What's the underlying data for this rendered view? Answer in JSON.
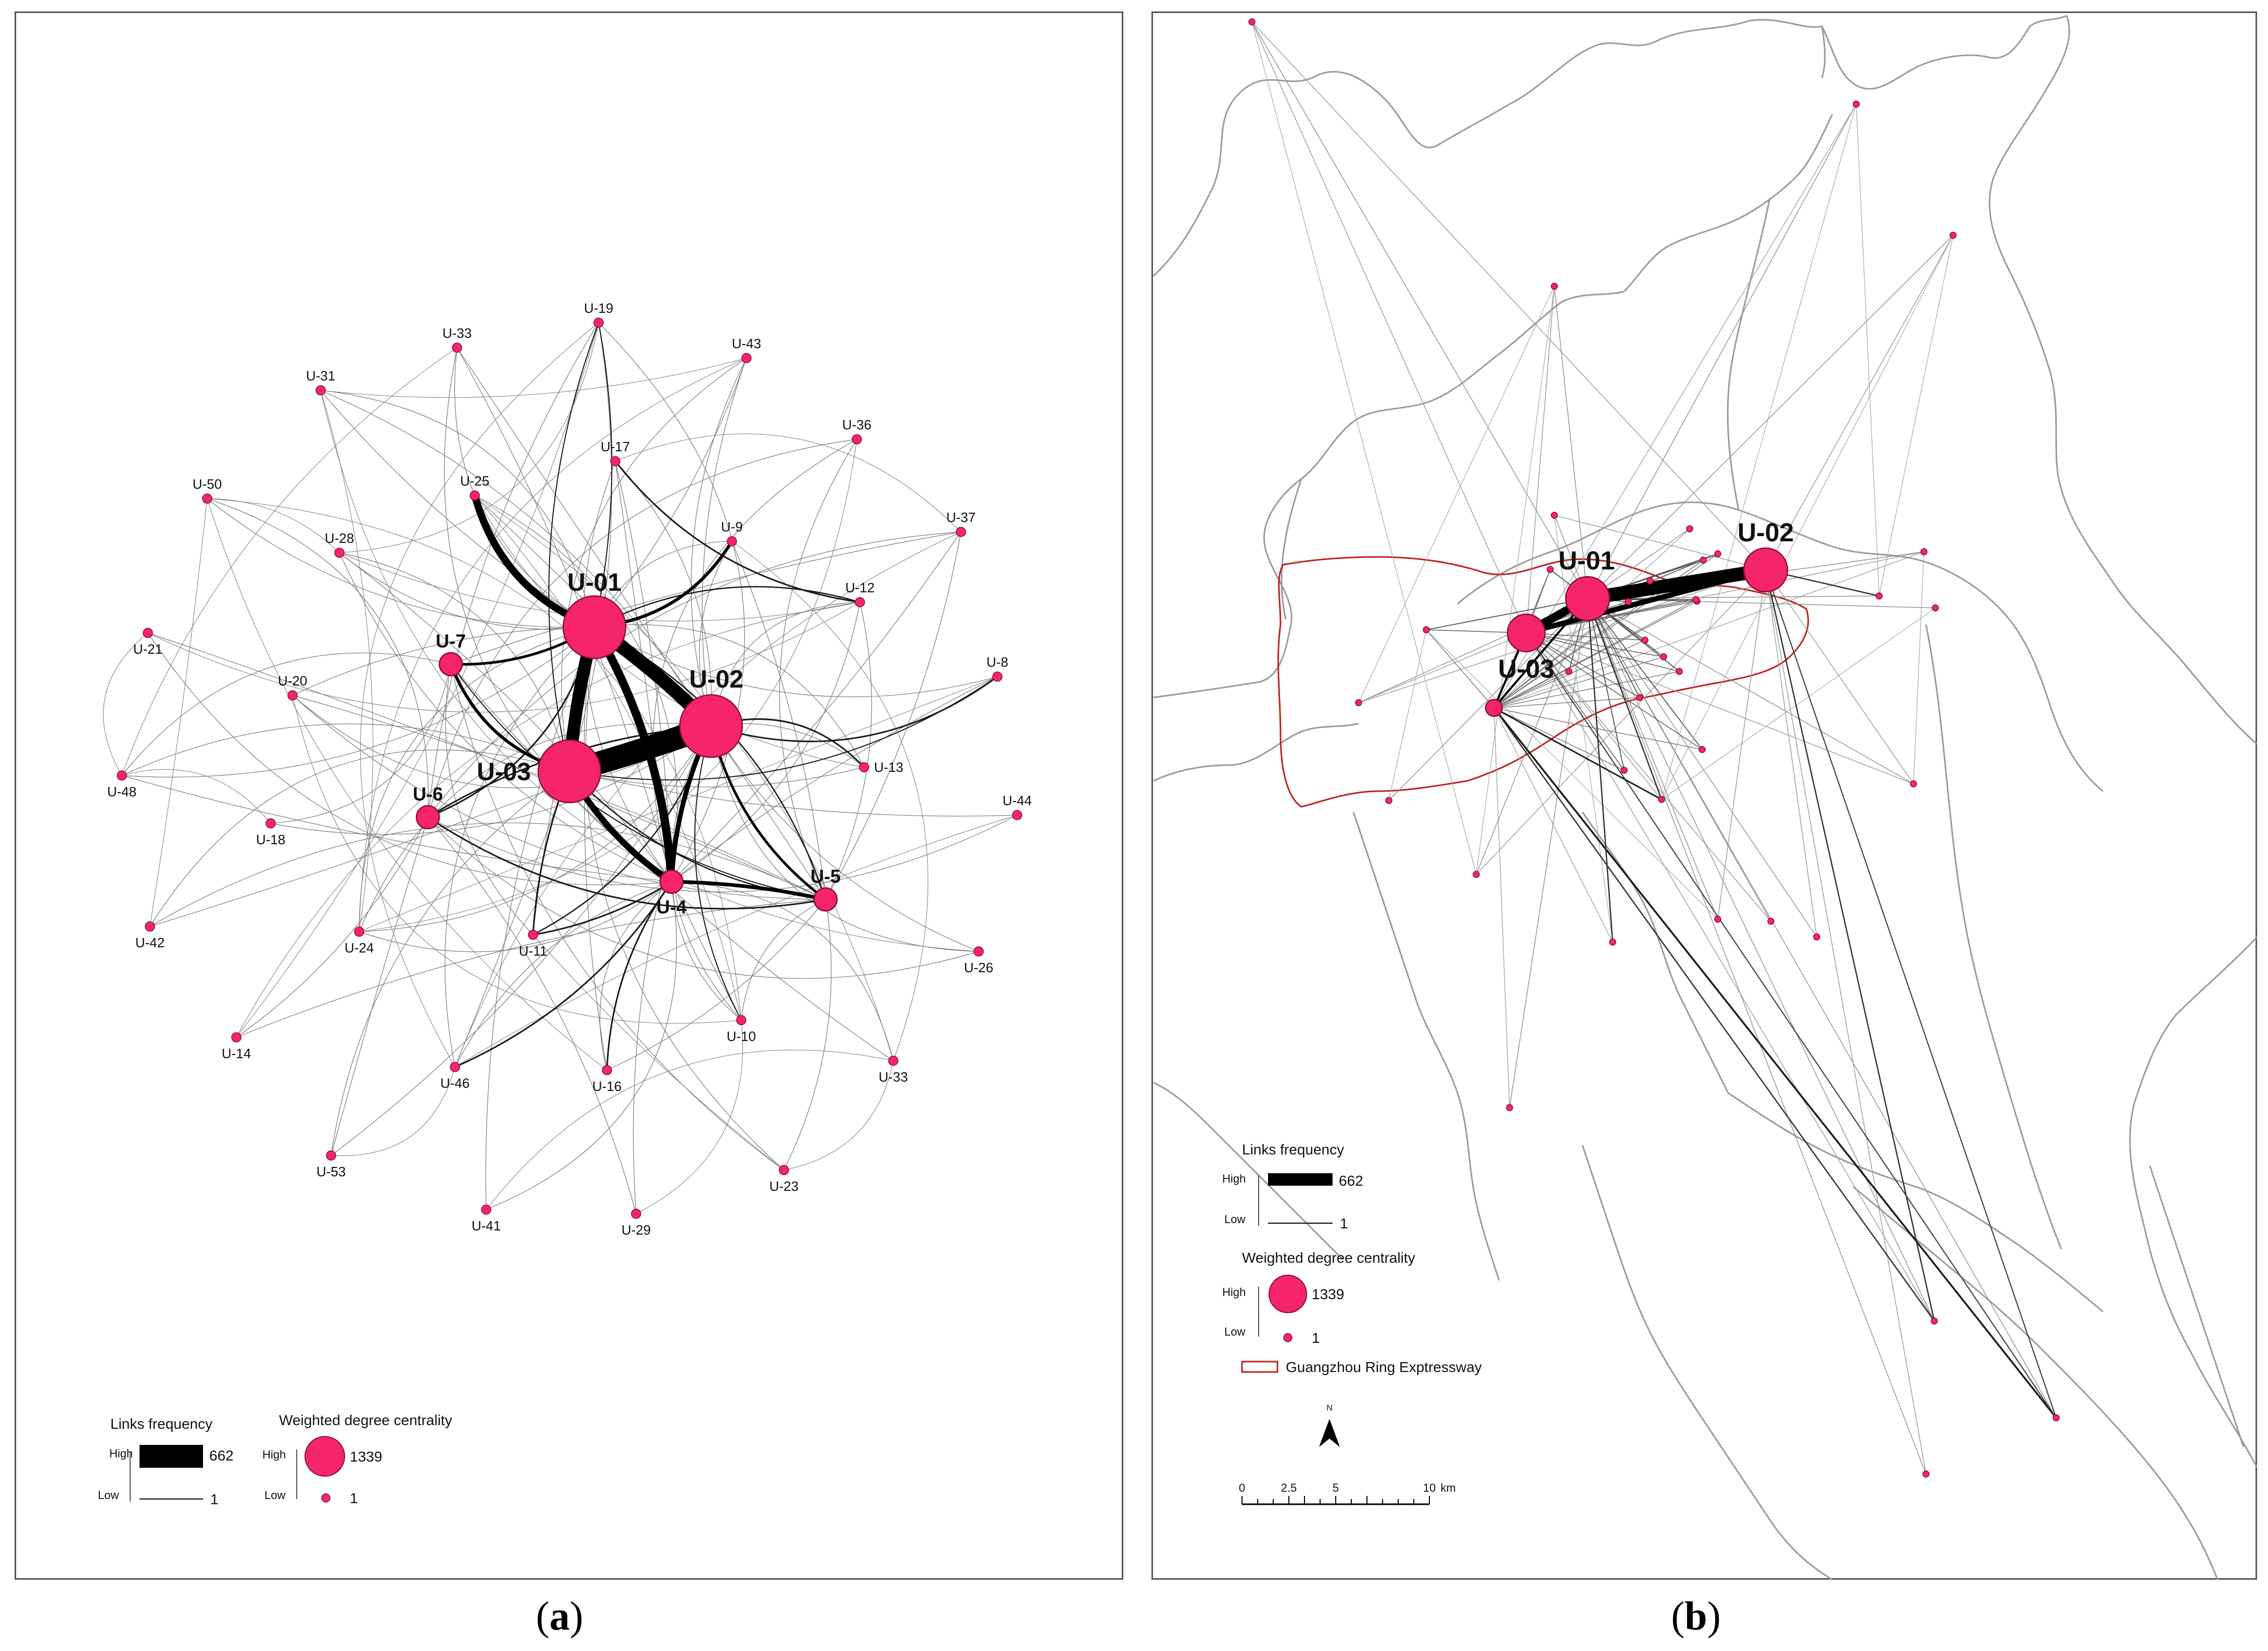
{
  "panels": [
    {
      "caption_letter": "a",
      "legend": {
        "links_title": "Links frequency",
        "links_high": "High",
        "links_low": "Low",
        "links_max": "662",
        "links_min": "1",
        "centrality_title": "Weighted degree centrality",
        "centrality_high": "High",
        "centrality_low": "Low",
        "centrality_max": "1339",
        "centrality_min": "1"
      },
      "nodes": [
        {
          "id": "U-01",
          "label": "U-01",
          "size": "big"
        },
        {
          "id": "U-02",
          "label": "U-02",
          "size": "big"
        },
        {
          "id": "U-03",
          "label": "U-03",
          "size": "big"
        },
        {
          "id": "U-4",
          "label": "U-4",
          "size": "mid"
        },
        {
          "id": "U-5",
          "label": "U-5",
          "size": "mid"
        },
        {
          "id": "U-6",
          "label": "U-6",
          "size": "mid"
        },
        {
          "id": "U-7",
          "label": "U-7",
          "size": "mid"
        },
        {
          "id": "U-8",
          "label": "U-8",
          "size": "small"
        },
        {
          "id": "U-9",
          "label": "U-9",
          "size": "small"
        },
        {
          "id": "U-10",
          "label": "U-10",
          "size": "small"
        },
        {
          "id": "U-11",
          "label": "U-11",
          "size": "small"
        },
        {
          "id": "U-12",
          "label": "U-12",
          "size": "small"
        },
        {
          "id": "U-13",
          "label": "U-13",
          "size": "small"
        },
        {
          "id": "U-14",
          "label": "U-14",
          "size": "small"
        },
        {
          "id": "U-16",
          "label": "U-16",
          "size": "small"
        },
        {
          "id": "U-17",
          "label": "U-17",
          "size": "small"
        },
        {
          "id": "U-18",
          "label": "U-18",
          "size": "small"
        },
        {
          "id": "U-19",
          "label": "U-19",
          "size": "small"
        },
        {
          "id": "U-20",
          "label": "U-20",
          "size": "small"
        },
        {
          "id": "U-21",
          "label": "U-21",
          "size": "small"
        },
        {
          "id": "U-23",
          "label": "U-23",
          "size": "small"
        },
        {
          "id": "U-24",
          "label": "U-24",
          "size": "small"
        },
        {
          "id": "U-25",
          "label": "U-25",
          "size": "small"
        },
        {
          "id": "U-26",
          "label": "U-26",
          "size": "small"
        },
        {
          "id": "U-28",
          "label": "U-28",
          "size": "small"
        },
        {
          "id": "U-29",
          "label": "U-29",
          "size": "small"
        },
        {
          "id": "U-31",
          "label": "U-31",
          "size": "small"
        },
        {
          "id": "U-33a",
          "label": "U-33",
          "size": "small"
        },
        {
          "id": "U-33b",
          "label": "U-33",
          "size": "small"
        },
        {
          "id": "U-36",
          "label": "U-36",
          "size": "small"
        },
        {
          "id": "U-37",
          "label": "U-37",
          "size": "small"
        },
        {
          "id": "U-41",
          "label": "U-41",
          "size": "small"
        },
        {
          "id": "U-42",
          "label": "U-42",
          "size": "small"
        },
        {
          "id": "U-43",
          "label": "U-43",
          "size": "small"
        },
        {
          "id": "U-44",
          "label": "U-44",
          "size": "small"
        },
        {
          "id": "U-46",
          "label": "U-46",
          "size": "small"
        },
        {
          "id": "U-48",
          "label": "U-48",
          "size": "small"
        },
        {
          "id": "U-50",
          "label": "U-50",
          "size": "small"
        },
        {
          "id": "U-53",
          "label": "U-53",
          "size": "small"
        }
      ]
    },
    {
      "caption_letter": "b",
      "legend": {
        "links_title": "Links frequency",
        "links_high": "High",
        "links_low": "Low",
        "links_max": "662",
        "links_min": "1",
        "centrality_title": "Weighted degree centrality",
        "centrality_high": "High",
        "centrality_low": "Low",
        "centrality_max": "1339",
        "centrality_min": "1",
        "ring_label": "Guangzhou Ring Exptressway"
      },
      "north_label": "N",
      "scale_bar": {
        "ticks": [
          "0",
          "2.5",
          "5",
          "10"
        ],
        "unit": "km"
      },
      "hub_labels": [
        "U-01",
        "U-02",
        "U-03"
      ]
    }
  ],
  "colors": {
    "node_fill": "#f5246b",
    "node_stroke": "#8c0f35",
    "ring": "#c0201e",
    "border": "#9a9a9a"
  }
}
